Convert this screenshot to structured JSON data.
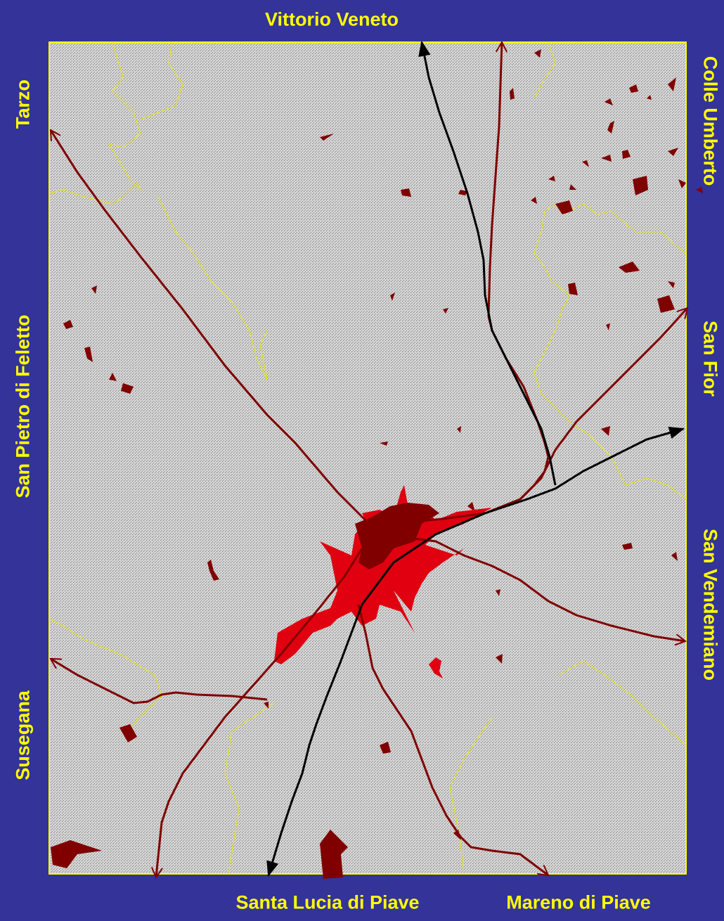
{
  "labels": {
    "north": "Vittorio Veneto",
    "north_east": "Colle Umberto",
    "east": "San Fior",
    "south_east": "San Vendemiano",
    "north_west": "Tarzo",
    "west": "San Pietro di Feletto",
    "south_west": "Susegana",
    "south": "Santa Lucia di Piave",
    "south_right": "Mareno di Piave"
  },
  "colors": {
    "background": "#333399",
    "label_text": "#ffff00",
    "map_fill": "#c8c8c8",
    "map_border": "#ffff00",
    "boundary_line": "#ffff00",
    "road": "#800000",
    "railway": "#000000",
    "urban_core": "#800000",
    "urban_sprawl": "#e00010"
  },
  "icons": {
    "arrow_head": "open-arrow-icon",
    "rail_head": "filled-arrow-icon"
  }
}
